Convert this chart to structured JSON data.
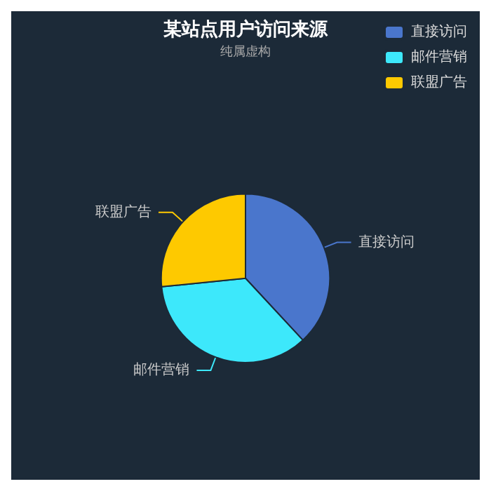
{
  "chart_data": {
    "type": "pie",
    "title": "某站点用户访问来源",
    "subtitle": "纯属虚构",
    "categories": [
      "直接访问",
      "邮件营销",
      "联盟广告"
    ],
    "values": [
      38.1,
      35.3,
      26.6
    ],
    "colors": [
      "#4a76cc",
      "#3de8fb",
      "#fec900"
    ],
    "legend": "top right"
  }
}
